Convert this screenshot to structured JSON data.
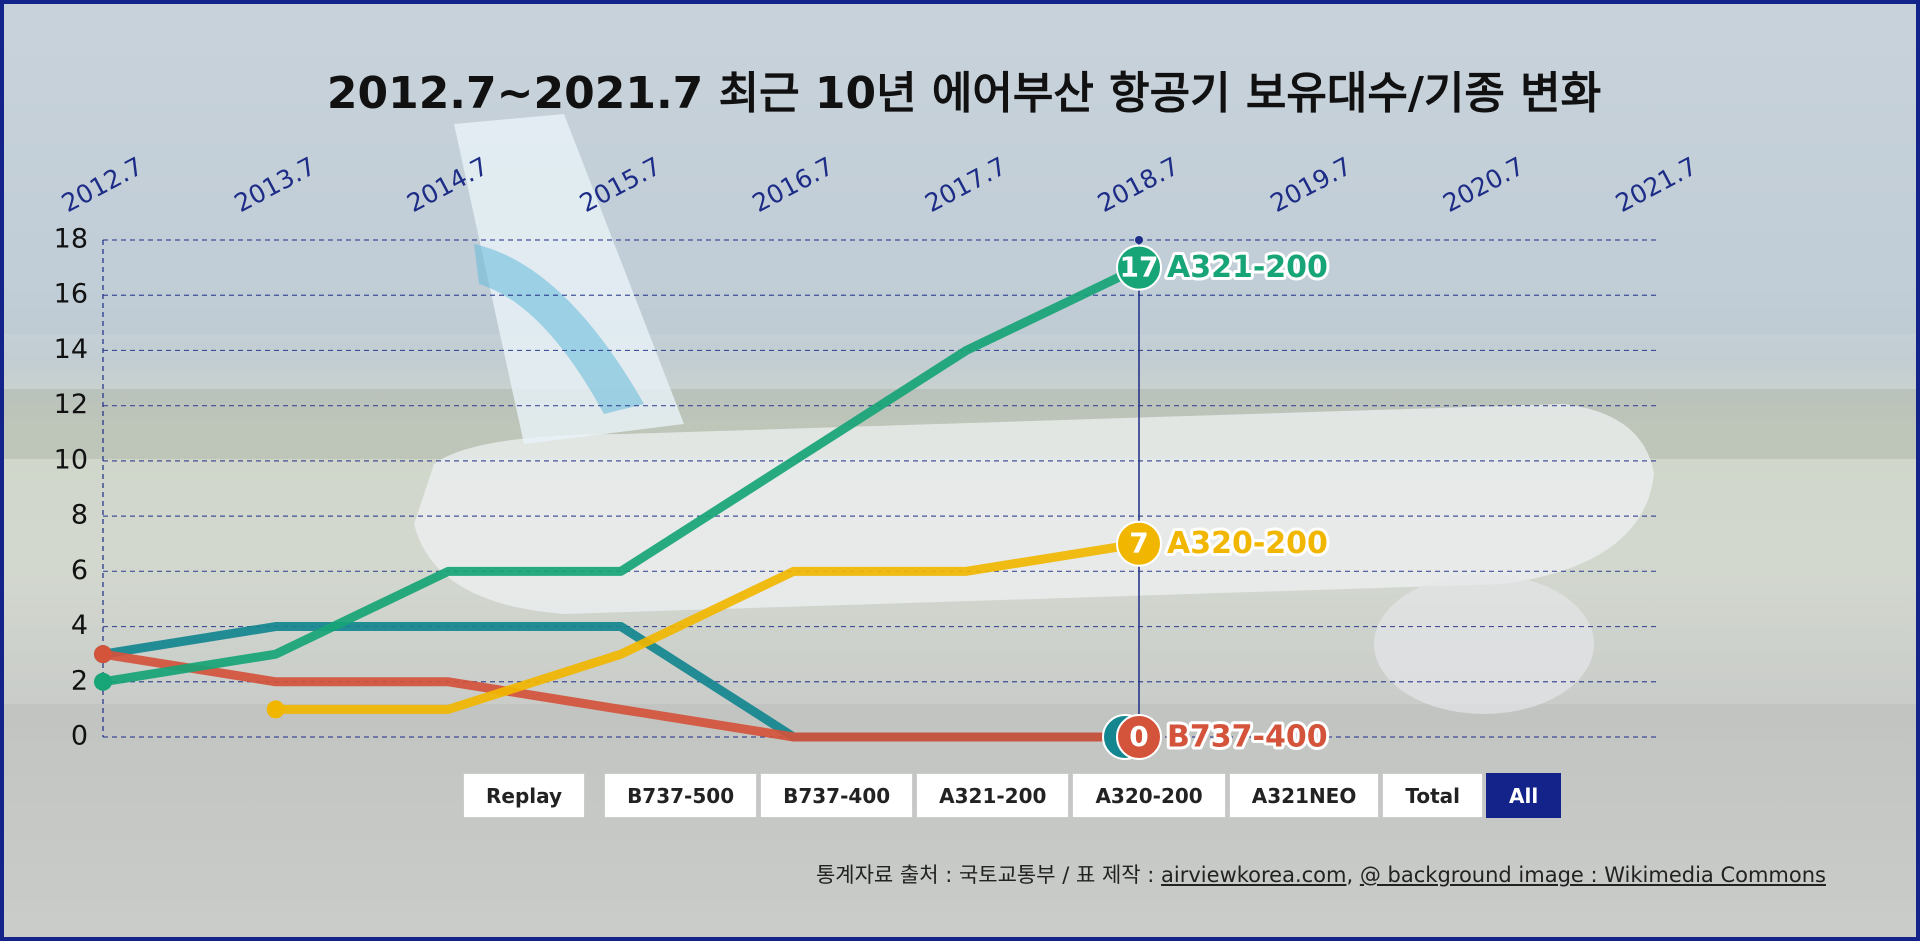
{
  "chart_data": {
    "type": "line",
    "title": "2012.7~2021.7 최근 10년 에어부산 항공기 보유대수/기종 변화",
    "categories": [
      "2012.7",
      "2013.7",
      "2014.7",
      "2015.7",
      "2016.7",
      "2017.7",
      "2018.7",
      "2019.7",
      "2020.7",
      "2021.7"
    ],
    "series": [
      {
        "name": "B737-500",
        "color": "#14868f",
        "values": [
          3,
          4,
          4,
          4,
          0,
          0,
          0,
          null,
          null,
          null
        ],
        "end_label": false
      },
      {
        "name": "B737-400",
        "color": "#d4533b",
        "values": [
          3,
          2,
          2,
          1,
          0,
          0,
          0,
          null,
          null,
          null
        ],
        "end_label": true
      },
      {
        "name": "A321-200",
        "color": "#17a476",
        "values": [
          2,
          3,
          6,
          6,
          10,
          14,
          17,
          null,
          null,
          null
        ],
        "end_label": true
      },
      {
        "name": "A320-200",
        "color": "#f1b600",
        "values": [
          null,
          1,
          1,
          3,
          6,
          6,
          7,
          null,
          null,
          null
        ],
        "end_label": true
      }
    ],
    "ylim": [
      0,
      18
    ],
    "yticks": [
      0,
      2,
      4,
      6,
      8,
      10,
      12,
      14,
      16,
      18
    ],
    "grid": true,
    "current_index": 6
  },
  "controls": {
    "replay": "Replay",
    "extra": [
      "A321NEO",
      "Total",
      "All"
    ],
    "active": "All"
  },
  "footer": {
    "source": "통계자료 출처 : 국토교통부 / 표 제작 : ",
    "site": "airviewkorea.com",
    "sep": ", ",
    "credit": "@ background image : Wikimedia Commons"
  }
}
